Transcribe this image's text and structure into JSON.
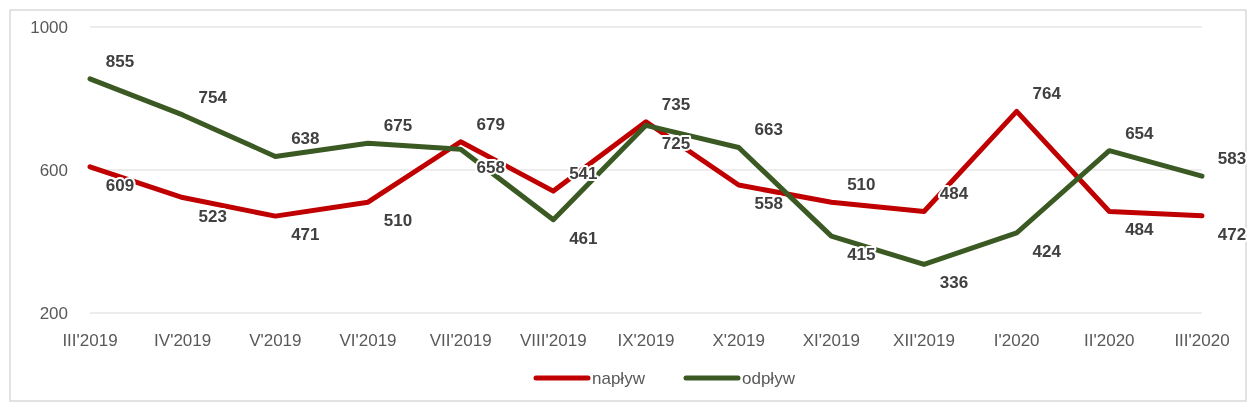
{
  "chart_data": {
    "type": "line",
    "categories": [
      "III'2019",
      "IV'2019",
      "V'2019",
      "VI'2019",
      "VII'2019",
      "VIII'2019",
      "IX'2019",
      "X'2019",
      "XI'2019",
      "XII'2019",
      "I'2020",
      "II'2020",
      "III'2020"
    ],
    "series": [
      {
        "name": "napływ",
        "color": "#c00000",
        "values": [
          609,
          523,
          471,
          510,
          679,
          541,
          735,
          558,
          510,
          484,
          764,
          484,
          472
        ]
      },
      {
        "name": "odpływ",
        "color": "#3b5a23",
        "values": [
          855,
          754,
          638,
          675,
          658,
          461,
          725,
          663,
          415,
          336,
          424,
          654,
          583
        ]
      }
    ],
    "ylim": [
      200,
      1000
    ],
    "yticks": [
      200,
      600,
      1000
    ],
    "grid": "y",
    "legend": "bottom",
    "data_labels": true,
    "marker": "none",
    "line_style": "solid"
  }
}
